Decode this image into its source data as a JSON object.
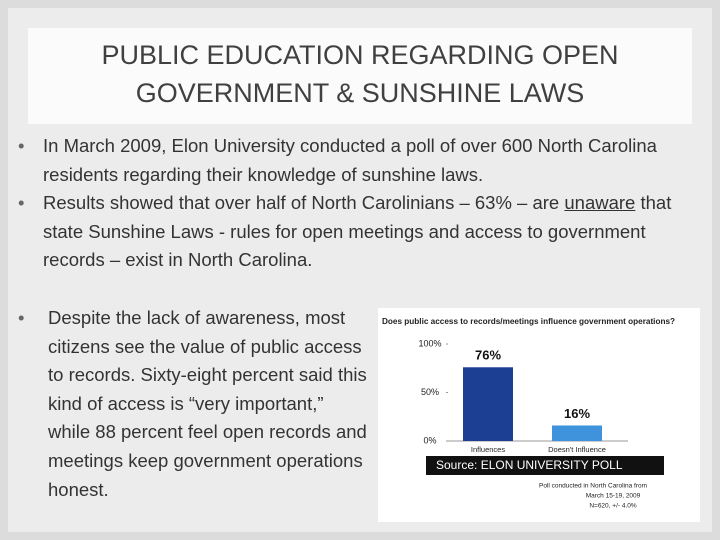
{
  "header": {
    "title": "PUBLIC EDUCATION REGARDING OPEN GOVERNMENT & SUNSHINE LAWS"
  },
  "bullets": [
    [
      "In March 2009, Elon University conducted a poll of over 600 North Carolina residents regarding their knowledge of sunshine laws."
    ],
    [
      "Results showed that over half of North Carolinians – 63% – are ",
      "unaware",
      " that state Sunshine Laws - rules for open meetings and access to government records – exist in North Carolina."
    ],
    [
      "Despite the lack of awareness, most citizens see the value of public access to records. Sixty-eight percent said this kind of access is “very important,” while 88 percent feel open records and meetings keep government operations honest."
    ]
  ],
  "chart_data": {
    "type": "bar",
    "title": "Does public access to records/meetings influence government operations?",
    "categories": [
      "Influences",
      "Doesn't Influence"
    ],
    "values": [
      76,
      16
    ],
    "value_labels": [
      "76%",
      "16%"
    ],
    "colors": [
      "#1c3f93",
      "#3f93dc"
    ],
    "ylim": [
      0,
      100
    ],
    "yticks": [
      {
        "value": 0,
        "label": "0%"
      },
      {
        "value": 50,
        "label": "50%"
      },
      {
        "value": 100,
        "label": "100%"
      }
    ],
    "source": "Source: ELON UNIVERSITY POLL",
    "note": [
      "Poll conducted in North Carolina from",
      "March 15-19, 2009",
      "N=620, +/- 4.0%"
    ]
  }
}
